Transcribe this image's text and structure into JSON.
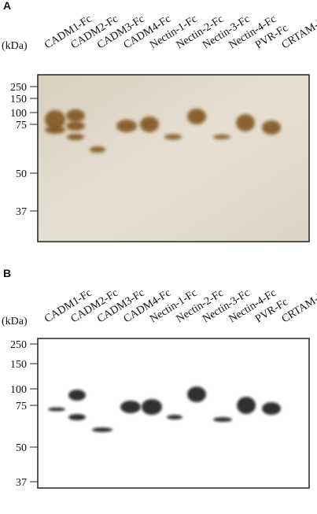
{
  "panels": [
    {
      "label": "A",
      "unit": "(kDa)",
      "lanes": [
        "CADM1-Fc",
        "CADM2-Fc",
        "CADM3-Fc",
        "CADM4-Fc",
        "Nectin-1-Fc",
        "Nectin-2-Fc",
        "Nectin-3-Fc",
        "Nectin-4-Fc",
        "PVR-Fc",
        "CRTAM-Fc"
      ],
      "markers": [
        250,
        150,
        100,
        75,
        50,
        37
      ]
    },
    {
      "label": "B",
      "unit": "(kDa)",
      "lanes": [
        "CADM1-Fc",
        "CADM2-Fc",
        "CADM3-Fc",
        "CADM4-Fc",
        "Nectin-1-Fc",
        "Nectin-2-Fc",
        "Nectin-3-Fc",
        "Nectin-4-Fc",
        "PVR-Fc",
        "CRTAM-Fc"
      ],
      "markers": [
        250,
        150,
        100,
        75,
        50,
        37
      ]
    }
  ]
}
